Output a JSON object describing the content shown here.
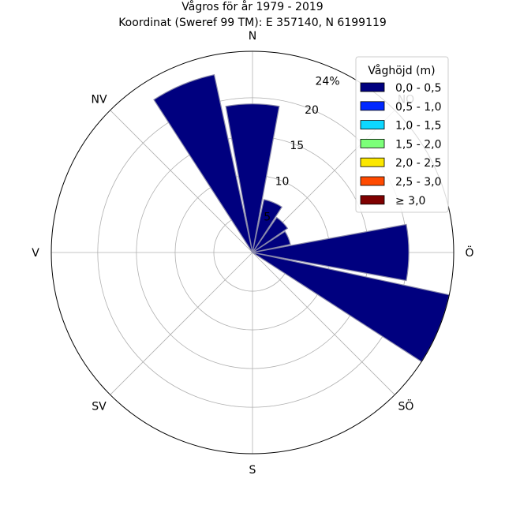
{
  "chart_data": {
    "type": "windrose",
    "title": "Vågros för år 1979 - 2019",
    "subtitle": "Koordinat (Sweref 99 TM): E 357140, N 6199119",
    "directions": [
      "N",
      "NO",
      "Ö",
      "SÖ",
      "S",
      "SV",
      "V",
      "NV"
    ],
    "radial_ticks": [
      "5",
      "10",
      "15",
      "20",
      "24%"
    ],
    "rmax": 26,
    "legend": {
      "title": "Våghöjd (m)",
      "bins": [
        {
          "label": "0,0 - 0,5",
          "color": "#00007f"
        },
        {
          "label": "0,5 - 1,0",
          "color": "#0028ff"
        },
        {
          "label": "1,0 - 1,5",
          "color": "#0dd7ff"
        },
        {
          "label": "1,5 - 2,0",
          "color": "#7cff79"
        },
        {
          "label": "2,0 - 2,5",
          "color": "#fbe700"
        },
        {
          "label": "2,5 - 3,0",
          "color": "#ff4a00"
        },
        {
          "label": "≥ 3,0",
          "color": "#7f0000"
        }
      ]
    },
    "sector_width_deg": 22.5,
    "sectors": [
      {
        "direction_deg": 0,
        "value": 19.2
      },
      {
        "direction_deg": 22.5,
        "value": 7.0
      },
      {
        "direction_deg": 45,
        "value": 5.5
      },
      {
        "direction_deg": 67.5,
        "value": 5.0
      },
      {
        "direction_deg": 90,
        "value": 20.2
      },
      {
        "direction_deg": 112.5,
        "value": 26.0
      },
      {
        "direction_deg": 337.5,
        "value": 23.5
      }
    ]
  }
}
